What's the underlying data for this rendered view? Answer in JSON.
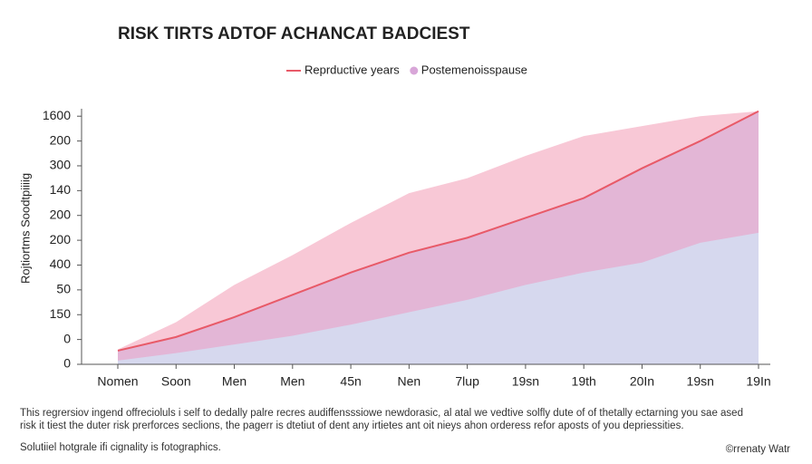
{
  "chart_data": {
    "type": "area",
    "title": "RISK TIRTS ADTOF ACHANCAT BADCIEST",
    "y_label": "Rojtiortms Soodtpiiiig",
    "categories": [
      "Nomen",
      "Soon",
      "Men",
      "Men",
      "45n",
      "Nen",
      "7lup",
      "19sn",
      "19th",
      "20In",
      "19sn",
      "19In"
    ],
    "series": [
      {
        "name": "Postemenoisspause",
        "color": "#f8c8d6",
        "values": [
          0.6,
          1.7,
          3.2,
          4.4,
          5.7,
          6.9,
          7.5,
          8.4,
          9.2,
          9.6,
          10.0,
          10.2
        ]
      },
      {
        "name": "Reprductive years",
        "color": "#e85a68",
        "values": [
          0.55,
          1.1,
          1.9,
          2.8,
          3.7,
          4.5,
          5.1,
          5.9,
          6.7,
          7.9,
          9.0,
          10.2
        ]
      },
      {
        "color": "#d6d8ee",
        "values": [
          0.15,
          0.45,
          0.8,
          1.15,
          1.6,
          2.1,
          2.6,
          3.2,
          3.7,
          4.1,
          4.9,
          5.3
        ]
      }
    ],
    "fill_under_line": "#e3b6d6",
    "ylim": [
      0,
      10.3
    ],
    "yticks": [
      {
        "value": 0,
        "label": "0"
      },
      {
        "value": 1,
        "label": "0"
      },
      {
        "value": 2,
        "label": "150"
      },
      {
        "value": 3,
        "label": "50"
      },
      {
        "value": 4,
        "label": "400"
      },
      {
        "value": 5,
        "label": "200"
      },
      {
        "value": 6,
        "label": "200"
      },
      {
        "value": 7,
        "label": "140"
      },
      {
        "value": 8,
        "label": "300"
      },
      {
        "value": 9,
        "label": "200"
      },
      {
        "value": 10,
        "label": "1600"
      }
    ],
    "notes": [
      "This regrersiov ingend offrecioluls i self to dedally palre recres audiffensssiowe newdorasic, al atal we vedtive solfly dute of of thetally ectarning you sae ased",
      "risk it tiest the duter risk prerforces seclions, the pagerr is dtetiut of dent any irtietes ant oit nieys ahon orderess refor aposts of you depriessities."
    ],
    "source": "Solutiiel hotgrale ifi cignality is fotographics.",
    "credit": "©rrenaty Watr"
  }
}
